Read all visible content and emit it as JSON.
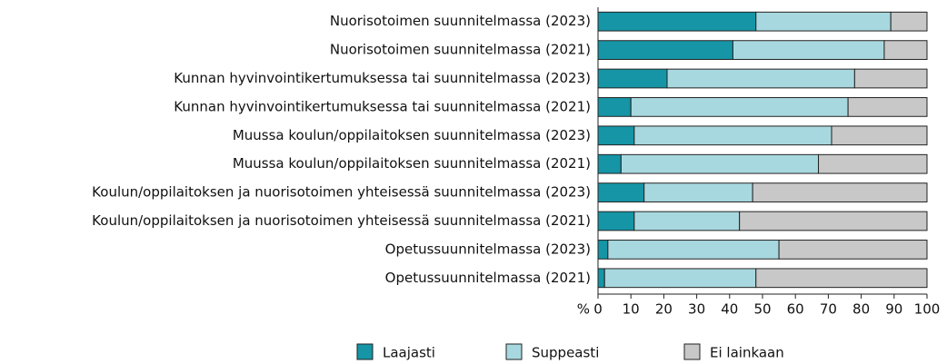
{
  "chart_data": {
    "type": "stacked_barh",
    "categories": [
      "Nuorisotoimen suunnitelmassa (2023)",
      "Nuorisotoimen suunnitelmassa (2021)",
      "Kunnan hyvinvointikertumuksessa tai suunnitelmassa (2023)",
      "Kunnan hyvinvointikertumuksessa tai suunnitelmassa (2021)",
      "Muussa koulun/oppilaitoksen suunnitelmassa (2023)",
      "Muussa koulun/oppilaitoksen suunnitelmassa (2021)",
      "Koulun/oppilaitoksen ja nuorisotoimen yhteisessä suunnitelmassa (2023)",
      "Koulun/oppilaitoksen ja nuorisotoimen yhteisessä suunnitelmassa (2021)",
      "Opetussuunnitelmassa (2023)",
      "Opetussuunnitelmassa (2021)"
    ],
    "series": [
      {
        "name": "Laajasti",
        "color": "#1595a6",
        "values": [
          48,
          41,
          21,
          10,
          11,
          7,
          14,
          11,
          3,
          2
        ]
      },
      {
        "name": "Suppeasti",
        "color": "#a8d8df",
        "values": [
          41,
          46,
          57,
          66,
          60,
          60,
          33,
          32,
          52,
          46
        ]
      },
      {
        "name": "Ei lainkaan",
        "color": "#c8c8c8",
        "values": [
          11,
          13,
          22,
          24,
          29,
          33,
          53,
          57,
          45,
          52
        ]
      }
    ],
    "xlabel": "%",
    "xlim": [
      0,
      100
    ],
    "xticks": [
      0,
      10,
      20,
      30,
      40,
      50,
      60,
      70,
      80,
      90,
      100
    ],
    "legend": "bottom"
  }
}
